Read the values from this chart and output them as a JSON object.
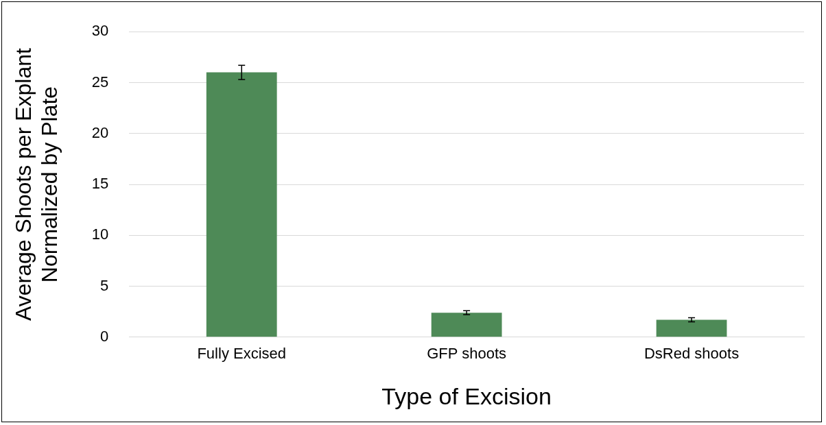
{
  "chart_data": {
    "type": "bar",
    "xlabel": "Type of Excision",
    "ylabel": "Average Shoots per Explant\nNormalized by Plate",
    "categories": [
      "Fully Excised",
      "GFP shoots",
      "DsRed shoots"
    ],
    "values": [
      26.0,
      2.4,
      1.7
    ],
    "errors": [
      0.7,
      0.2,
      0.2
    ],
    "color": "#4e8a57",
    "ylim": [
      0,
      30
    ],
    "yticks": [
      0,
      5,
      10,
      15,
      20,
      25,
      30
    ],
    "grid": "y",
    "legend": false
  }
}
